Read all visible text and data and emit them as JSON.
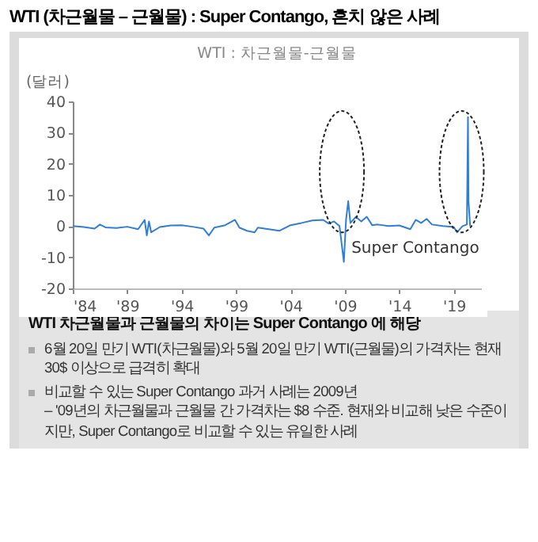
{
  "chart_data": {
    "type": "line",
    "title": "WTI (차근월물 – 근월물) : Super Contango, 흔치 않은 사례",
    "subtitle": "WTI : 차근월물-근월물",
    "ylabel": "(달러)",
    "x": [
      1984,
      1985,
      1986,
      1986.5,
      1987,
      1988,
      1989,
      1990,
      1990.6,
      1990.8,
      1991,
      1991.2,
      1992,
      1993,
      1994,
      1995,
      1996,
      1996.5,
      1997,
      1998,
      1998.9,
      1999.3,
      2000,
      2000.7,
      2001,
      2002,
      2003,
      2004,
      2005,
      2006,
      2007,
      2007.5,
      2008,
      2008.5,
      2008.9,
      2009.1,
      2009.3,
      2009.5,
      2010,
      2010.5,
      2011,
      2011.5,
      2012,
      2013,
      2014,
      2015,
      2015.5,
      2016,
      2016.5,
      2017,
      2018,
      2019,
      2019.3,
      2019.8,
      2020.2,
      2020.3,
      2020.35,
      2020.5
    ],
    "series": [
      {
        "color": "#2f7fd8",
        "values": [
          0,
          -0.3,
          -0.8,
          0.5,
          -0.4,
          -0.6,
          -0.2,
          -1,
          2,
          -3,
          1.5,
          -2,
          -0.3,
          0.2,
          0.3,
          -0.2,
          -0.8,
          -3,
          -0.5,
          0.3,
          2,
          -0.5,
          -1.5,
          -2,
          -0.5,
          -1,
          -1.5,
          0.3,
          1,
          1.8,
          2,
          0.8,
          1.5,
          0,
          -11.5,
          2,
          8,
          1,
          3,
          1.5,
          3,
          0.3,
          0.5,
          0,
          0.2,
          -1,
          2,
          1,
          2.3,
          0.5,
          0,
          -0.3,
          -2,
          0,
          0.5,
          35,
          8,
          0
        ]
      }
    ],
    "xlim": [
      1984,
      2021.5
    ],
    "xticks": [
      {
        "value": 1984,
        "label": "'84"
      },
      {
        "value": 1989,
        "label": "'89"
      },
      {
        "value": 1994,
        "label": "'94"
      },
      {
        "value": 1999,
        "label": "'99"
      },
      {
        "value": 2004,
        "label": "'04"
      },
      {
        "value": 2009,
        "label": "'09"
      },
      {
        "value": 2014,
        "label": "'14"
      },
      {
        "value": 2019,
        "label": "'19"
      }
    ],
    "ylim": [
      -20,
      40
    ],
    "yticks": [
      -20,
      -10,
      0,
      10,
      20,
      30,
      40
    ],
    "grid": false,
    "legend": false,
    "line_style": "solid",
    "marker": "none",
    "annotations": [
      {
        "text": "Super Contango",
        "x": 2009.3,
        "y": -7
      },
      "WTI 차근월물과 근월물의 차이는 Super Contango 에 해당",
      "6월 20일 만기 WTI(차근월물)와 5월 20일 만기 WTI(근월물)의 가격차는 현재 30$ 이상으로 급격히 확대",
      "비교할 수 있는 Super Contango 과거 사례는 2009년",
      "– '09년의 차근월물과 근월물 간 가격차는 $8 수준. 현재와 비교해 낮은 수준이지만, Super Contango로 비교할 수 있는 유일한 사례"
    ]
  }
}
